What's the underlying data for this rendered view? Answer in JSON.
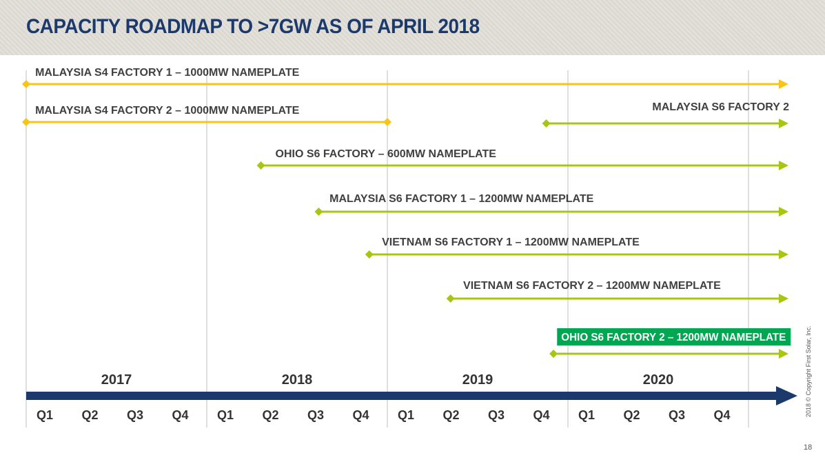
{
  "title": "CAPACITY ROADMAP TO >7GW AS OF APRIL 2018",
  "colors": {
    "navy": "#1b3a6b",
    "s4_yellow": "#f5c518",
    "s6_green": "#a9c411",
    "highlight_green": "#00a651",
    "grid": "#bfbfbf",
    "label": "#404040"
  },
  "chart_data": {
    "type": "timeline",
    "years": [
      "2017",
      "2018",
      "2019",
      "2020"
    ],
    "quarters": [
      "Q1",
      "Q2",
      "Q3",
      "Q4"
    ],
    "start": 2017.0,
    "end": 2021.0,
    "arrow_end": 2021.2,
    "bars": [
      {
        "name": "MALAYSIA S4 FACTORY 1 – 1000MW NAMEPLATE",
        "start": 2017.0,
        "end": null,
        "series": "s4",
        "label_at": 2017.05,
        "highlight": false
      },
      {
        "name": "MALAYSIA S4 FACTORY 2 – 1000MW NAMEPLATE",
        "start": 2017.0,
        "end": 2019.0,
        "series": "s4",
        "label_at": 2017.05,
        "highlight": false
      },
      {
        "name": "MALAYSIA S6 FACTORY 2",
        "start": 2019.88,
        "end": null,
        "series": "s6",
        "label_at": null,
        "highlight": false
      },
      {
        "name": "OHIO S6 FACTORY – 600MW NAMEPLATE",
        "start": 2018.3,
        "end": null,
        "series": "s6",
        "label_at": 2018.38,
        "highlight": false
      },
      {
        "name": "MALAYSIA S6 FACTORY 1 – 1200MW NAMEPLATE",
        "start": 2018.62,
        "end": null,
        "series": "s6",
        "label_at": 2018.68,
        "highlight": false
      },
      {
        "name": "VIETNAM S6 FACTORY 1 – 1200MW NAMEPLATE",
        "start": 2018.9,
        "end": null,
        "series": "s6",
        "label_at": 2018.97,
        "highlight": false
      },
      {
        "name": "VIETNAM S6 FACTORY 2 – 1200MW NAMEPLATE",
        "start": 2019.35,
        "end": null,
        "series": "s6",
        "label_at": 2019.42,
        "highlight": false
      },
      {
        "name": "OHIO S6 FACTORY 2 – 1200MW NAMEPLATE",
        "start": 2019.92,
        "end": null,
        "series": "s6",
        "label_at": 2019.94,
        "highlight": true
      }
    ]
  },
  "copyright": "2018 © Copyright First Solar, Inc.",
  "page_number": "18"
}
